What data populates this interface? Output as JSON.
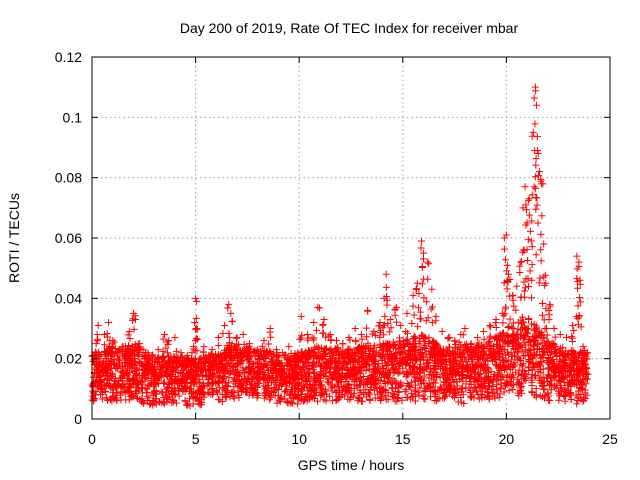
{
  "chart_data": {
    "type": "scatter",
    "title": "Day 200 of 2019, Rate Of TEC Index for receiver mbar",
    "xlabel": "GPS time / hours",
    "ylabel": "ROTI / TECUs",
    "xlim": [
      0,
      25
    ],
    "ylim": [
      0,
      0.12
    ],
    "x_ticks": [
      "0",
      "5",
      "10",
      "15",
      "20",
      "25"
    ],
    "y_ticks": [
      "0",
      "0.02",
      "0.04",
      "0.06",
      "0.08",
      "0.1",
      "0.12"
    ],
    "x_tick_values": [
      0,
      5,
      10,
      15,
      20,
      25
    ],
    "y_tick_values": [
      0,
      0.02,
      0.04,
      0.06,
      0.08,
      0.1,
      0.12
    ],
    "grid": true,
    "marker": "+",
    "color": "#ff0000",
    "series": [
      {
        "points": [
          [
            0.1,
            0.012
          ],
          [
            0.2,
            0.025
          ],
          [
            0.3,
            0.031
          ],
          [
            0.4,
            0.018
          ],
          [
            0.6,
            0.028
          ],
          [
            0.8,
            0.032
          ],
          [
            1.0,
            0.026
          ],
          [
            1.2,
            0.022
          ],
          [
            1.5,
            0.024
          ],
          [
            1.8,
            0.029
          ],
          [
            2.0,
            0.035
          ],
          [
            2.1,
            0.033
          ],
          [
            2.3,
            0.025
          ],
          [
            2.6,
            0.022
          ],
          [
            2.9,
            0.021
          ],
          [
            3.2,
            0.023
          ],
          [
            3.5,
            0.028
          ],
          [
            3.7,
            0.026
          ],
          [
            4.0,
            0.027
          ],
          [
            4.3,
            0.022
          ],
          [
            4.6,
            0.021
          ],
          [
            4.9,
            0.024
          ],
          [
            5.0,
            0.04
          ],
          [
            5.05,
            0.039
          ],
          [
            5.4,
            0.024
          ],
          [
            5.8,
            0.023
          ],
          [
            6.1,
            0.027
          ],
          [
            6.4,
            0.031
          ],
          [
            6.6,
            0.038
          ],
          [
            6.7,
            0.035
          ],
          [
            7.0,
            0.027
          ],
          [
            7.3,
            0.028
          ],
          [
            7.6,
            0.025
          ],
          [
            8.0,
            0.023
          ],
          [
            8.3,
            0.026
          ],
          [
            8.6,
            0.03
          ],
          [
            8.9,
            0.023
          ],
          [
            9.2,
            0.022
          ],
          [
            9.5,
            0.024
          ],
          [
            9.8,
            0.021
          ],
          [
            10.1,
            0.034
          ],
          [
            10.4,
            0.028
          ],
          [
            10.7,
            0.032
          ],
          [
            10.9,
            0.037
          ],
          [
            11.2,
            0.033
          ],
          [
            11.5,
            0.028
          ],
          [
            11.8,
            0.026
          ],
          [
            12.1,
            0.025
          ],
          [
            12.4,
            0.027
          ],
          [
            12.7,
            0.03
          ],
          [
            13.0,
            0.028
          ],
          [
            13.3,
            0.036
          ],
          [
            13.6,
            0.029
          ],
          [
            13.9,
            0.032
          ],
          [
            14.1,
            0.04
          ],
          [
            14.2,
            0.048
          ],
          [
            14.4,
            0.033
          ],
          [
            14.7,
            0.037
          ],
          [
            14.9,
            0.031
          ],
          [
            15.2,
            0.035
          ],
          [
            15.5,
            0.041
          ],
          [
            15.7,
            0.045
          ],
          [
            15.9,
            0.059
          ],
          [
            16.0,
            0.055
          ],
          [
            16.2,
            0.052
          ],
          [
            16.4,
            0.043
          ],
          [
            16.6,
            0.034
          ],
          [
            16.9,
            0.029
          ],
          [
            17.2,
            0.027
          ],
          [
            17.5,
            0.026
          ],
          [
            17.8,
            0.028
          ],
          [
            18.0,
            0.03
          ],
          [
            18.3,
            0.025
          ],
          [
            18.6,
            0.027
          ],
          [
            18.9,
            0.029
          ],
          [
            19.2,
            0.031
          ],
          [
            19.5,
            0.033
          ],
          [
            19.8,
            0.035
          ],
          [
            19.9,
            0.06
          ],
          [
            20.0,
            0.061
          ],
          [
            20.1,
            0.048
          ],
          [
            20.3,
            0.041
          ],
          [
            20.5,
            0.044
          ],
          [
            20.7,
            0.052
          ],
          [
            20.8,
            0.07
          ],
          [
            20.9,
            0.077
          ],
          [
            21.0,
            0.065
          ],
          [
            21.1,
            0.073
          ],
          [
            21.2,
            0.059
          ],
          [
            21.3,
            0.095
          ],
          [
            21.4,
            0.11
          ],
          [
            21.45,
            0.104
          ],
          [
            21.5,
            0.089
          ],
          [
            21.6,
            0.082
          ],
          [
            21.7,
            0.078
          ],
          [
            21.8,
            0.058
          ],
          [
            21.9,
            0.045
          ],
          [
            22.1,
            0.038
          ],
          [
            22.3,
            0.03
          ],
          [
            22.6,
            0.028
          ],
          [
            22.9,
            0.027
          ],
          [
            23.2,
            0.031
          ],
          [
            23.4,
            0.054
          ],
          [
            23.5,
            0.052
          ],
          [
            23.55,
            0.046
          ],
          [
            23.7,
            0.024
          ],
          [
            23.9,
            0.022
          ]
        ],
        "baseline_band": [
          [
            0.0,
            0.006,
            0.022
          ],
          [
            1.0,
            0.005,
            0.024
          ],
          [
            2.0,
            0.006,
            0.025
          ],
          [
            3.0,
            0.004,
            0.021
          ],
          [
            4.0,
            0.005,
            0.021
          ],
          [
            5.0,
            0.004,
            0.02
          ],
          [
            6.0,
            0.005,
            0.022
          ],
          [
            7.0,
            0.007,
            0.025
          ],
          [
            8.0,
            0.006,
            0.023
          ],
          [
            9.0,
            0.005,
            0.022
          ],
          [
            10.0,
            0.005,
            0.022
          ],
          [
            11.0,
            0.006,
            0.024
          ],
          [
            12.0,
            0.006,
            0.023
          ],
          [
            13.0,
            0.005,
            0.024
          ],
          [
            14.0,
            0.006,
            0.025
          ],
          [
            15.0,
            0.005,
            0.026
          ],
          [
            16.0,
            0.006,
            0.028
          ],
          [
            17.0,
            0.006,
            0.024
          ],
          [
            18.0,
            0.005,
            0.024
          ],
          [
            19.0,
            0.006,
            0.025
          ],
          [
            20.0,
            0.007,
            0.03
          ],
          [
            21.0,
            0.008,
            0.035
          ],
          [
            22.0,
            0.006,
            0.026
          ],
          [
            23.0,
            0.005,
            0.023
          ],
          [
            23.9,
            0.005,
            0.022
          ]
        ]
      }
    ]
  }
}
